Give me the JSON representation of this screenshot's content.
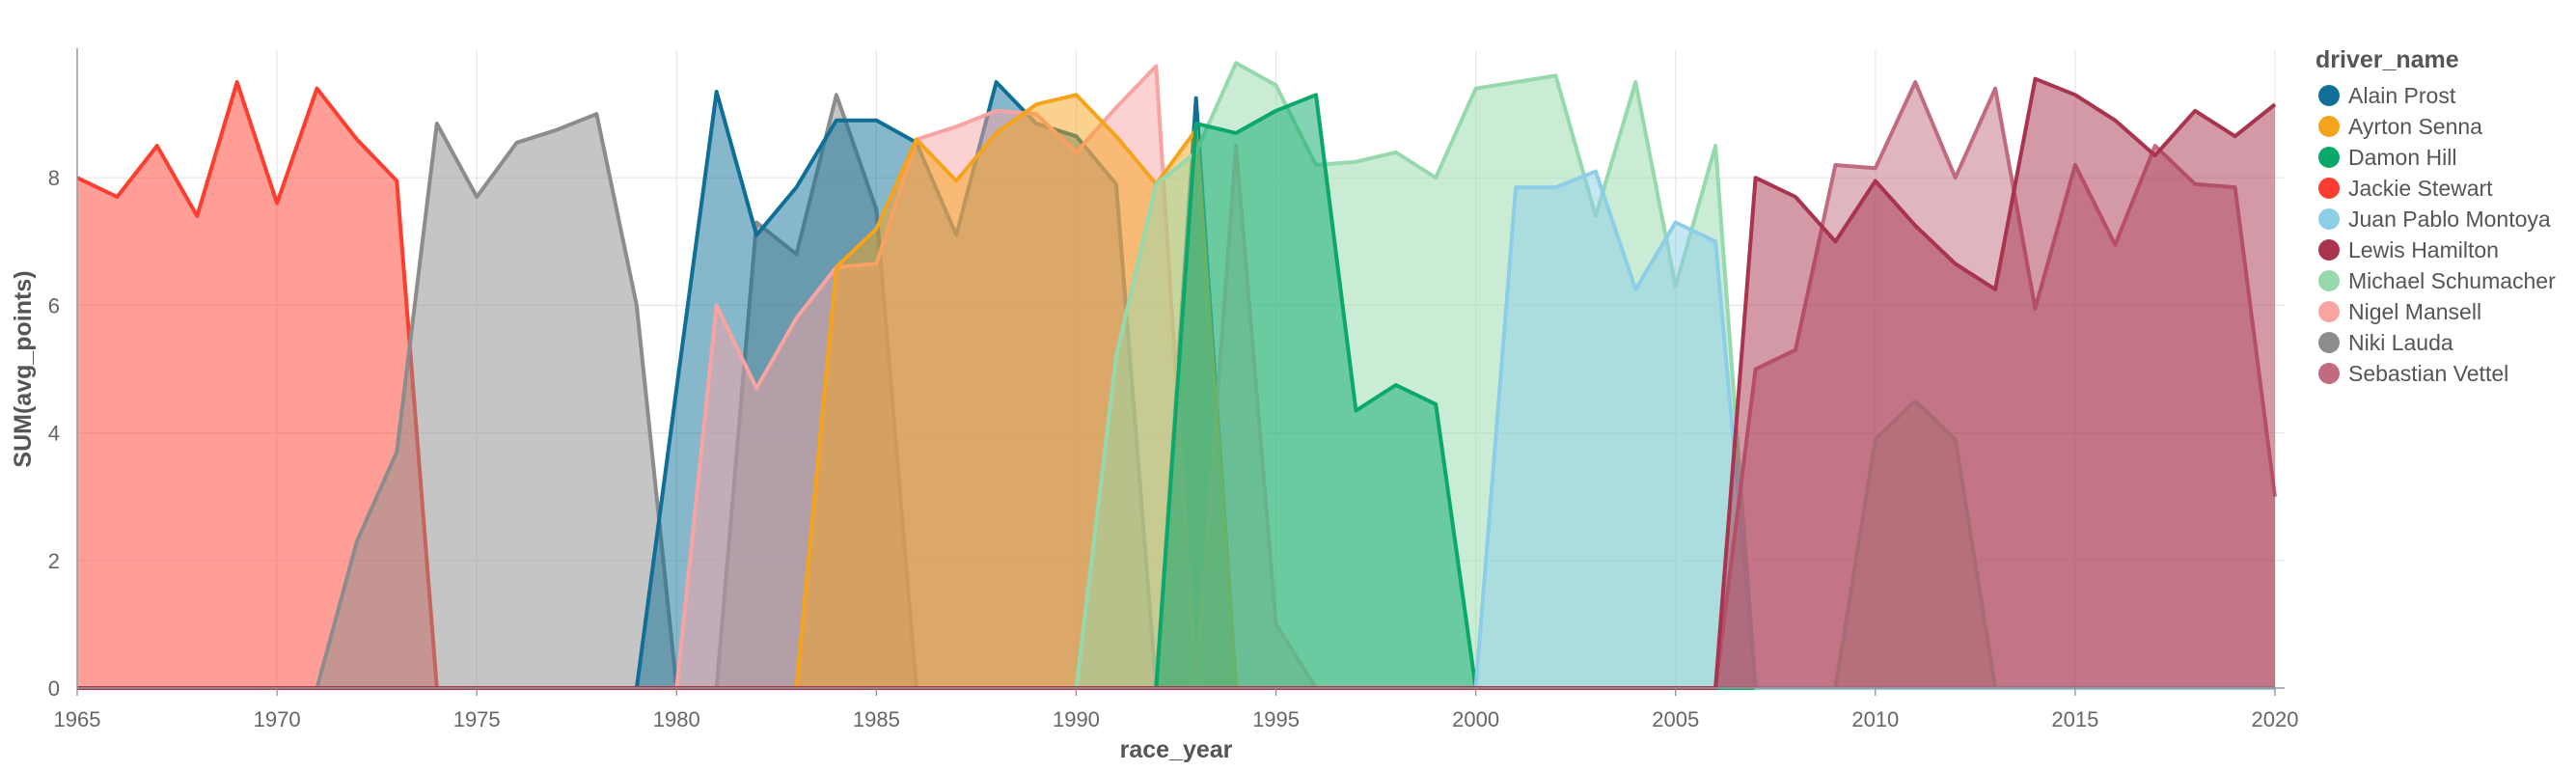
{
  "chart_data": {
    "type": "area",
    "xlabel": "race_year",
    "ylabel": "SUM(avg_points)",
    "xlim": [
      1965,
      2020
    ],
    "ylim": [
      0,
      10
    ],
    "x_ticks": [
      1965,
      1970,
      1975,
      1980,
      1985,
      1990,
      1995,
      2000,
      2005,
      2010,
      2015,
      2020
    ],
    "y_ticks": [
      0,
      2,
      4,
      6,
      8
    ],
    "grid": true,
    "stacked": false,
    "legend": {
      "title": "driver_name",
      "position": "right"
    },
    "series": [
      {
        "name": "Jackie Stewart",
        "color": "#ff3d2e",
        "points": [
          [
            1965,
            8.0
          ],
          [
            1966,
            7.7
          ],
          [
            1967,
            8.5
          ],
          [
            1968,
            7.4
          ],
          [
            1969,
            9.5
          ],
          [
            1970,
            7.6
          ],
          [
            1971,
            9.4
          ],
          [
            1972,
            8.6
          ],
          [
            1973,
            7.95
          ],
          [
            1974,
            0
          ]
        ]
      },
      {
        "name": "Niki Lauda",
        "color": "#8c8c8c",
        "points": [
          [
            1971,
            0
          ],
          [
            1972,
            2.3
          ],
          [
            1973,
            3.7
          ],
          [
            1974,
            8.85
          ],
          [
            1975,
            7.7
          ],
          [
            1976,
            8.55
          ],
          [
            1977,
            8.75
          ],
          [
            1978,
            9.0
          ],
          [
            1979,
            6.0
          ],
          [
            1980,
            0
          ],
          [
            1981,
            0
          ],
          [
            1982,
            7.3
          ],
          [
            1983,
            6.8
          ],
          [
            1984,
            9.3
          ],
          [
            1985,
            7.5
          ],
          [
            1986,
            0
          ]
        ]
      },
      {
        "name": "Alain Prost",
        "color": "#0f6f96",
        "points": [
          [
            1979,
            0
          ],
          [
            1980,
            4.7
          ],
          [
            1981,
            9.35
          ],
          [
            1982,
            7.1
          ],
          [
            1983,
            7.85
          ],
          [
            1984,
            8.9
          ],
          [
            1985,
            8.9
          ],
          [
            1986,
            8.55
          ],
          [
            1987,
            7.1
          ],
          [
            1988,
            9.5
          ],
          [
            1989,
            8.85
          ],
          [
            1990,
            8.65
          ],
          [
            1991,
            7.9
          ],
          [
            1992,
            0
          ],
          [
            1993,
            9.25
          ],
          [
            1994,
            0
          ]
        ]
      },
      {
        "name": "Nigel Mansell",
        "color": "#f9a3a3",
        "points": [
          [
            1980,
            0
          ],
          [
            1981,
            6.0
          ],
          [
            1982,
            4.7
          ],
          [
            1983,
            5.8
          ],
          [
            1984,
            6.6
          ],
          [
            1985,
            6.65
          ],
          [
            1986,
            8.6
          ],
          [
            1987,
            8.8
          ],
          [
            1988,
            9.05
          ],
          [
            1989,
            9.0
          ],
          [
            1990,
            8.4
          ],
          [
            1991,
            9.1
          ],
          [
            1992,
            9.75
          ],
          [
            1993,
            0
          ],
          [
            1994,
            8.5
          ],
          [
            1995,
            1.0
          ],
          [
            1996,
            0
          ]
        ]
      },
      {
        "name": "Ayrton Senna",
        "color": "#f6a31c",
        "points": [
          [
            1983,
            0
          ],
          [
            1984,
            6.6
          ],
          [
            1985,
            7.2
          ],
          [
            1986,
            8.6
          ],
          [
            1987,
            7.95
          ],
          [
            1988,
            8.7
          ],
          [
            1989,
            9.15
          ],
          [
            1990,
            9.3
          ],
          [
            1991,
            8.65
          ],
          [
            1992,
            7.9
          ],
          [
            1993,
            8.75
          ],
          [
            1994,
            0
          ]
        ]
      },
      {
        "name": "Michael Schumacher",
        "color": "#96d9ac",
        "points": [
          [
            1990,
            0
          ],
          [
            1991,
            5.2
          ],
          [
            1992,
            7.9
          ],
          [
            1993,
            8.4
          ],
          [
            1994,
            9.8
          ],
          [
            1995,
            9.45
          ],
          [
            1996,
            8.2
          ],
          [
            1997,
            8.25
          ],
          [
            1998,
            8.4
          ],
          [
            1999,
            8.0
          ],
          [
            2000,
            9.4
          ],
          [
            2001,
            9.5
          ],
          [
            2002,
            9.6
          ],
          [
            2003,
            7.4
          ],
          [
            2004,
            9.5
          ],
          [
            2005,
            6.3
          ],
          [
            2006,
            8.5
          ],
          [
            2007,
            0
          ],
          [
            2008,
            0
          ],
          [
            2009,
            0
          ],
          [
            2010,
            3.9
          ],
          [
            2011,
            4.5
          ],
          [
            2012,
            3.9
          ],
          [
            2013,
            0
          ]
        ]
      },
      {
        "name": "Damon Hill",
        "color": "#0aa86b",
        "points": [
          [
            1992,
            0
          ],
          [
            1993,
            8.85
          ],
          [
            1994,
            8.7
          ],
          [
            1995,
            9.05
          ],
          [
            1996,
            9.3
          ],
          [
            1997,
            4.35
          ],
          [
            1998,
            4.75
          ],
          [
            1999,
            4.45
          ],
          [
            2000,
            0
          ]
        ]
      },
      {
        "name": "Juan Pablo Montoya",
        "color": "#8ccde8",
        "points": [
          [
            2000,
            0
          ],
          [
            2001,
            7.85
          ],
          [
            2002,
            7.85
          ],
          [
            2003,
            8.1
          ],
          [
            2004,
            6.25
          ],
          [
            2005,
            7.3
          ],
          [
            2006,
            7.0
          ],
          [
            2007,
            0
          ]
        ]
      },
      {
        "name": "Sebastian Vettel",
        "color": "#c06b80",
        "points": [
          [
            2006,
            0
          ],
          [
            2007,
            5.0
          ],
          [
            2008,
            5.3
          ],
          [
            2009,
            8.2
          ],
          [
            2010,
            8.15
          ],
          [
            2011,
            9.5
          ],
          [
            2012,
            8.0
          ],
          [
            2013,
            9.4
          ],
          [
            2014,
            5.95
          ],
          [
            2015,
            8.2
          ],
          [
            2016,
            6.95
          ],
          [
            2017,
            8.5
          ],
          [
            2018,
            7.9
          ],
          [
            2019,
            7.85
          ],
          [
            2020,
            3.0
          ]
        ]
      },
      {
        "name": "Lewis Hamilton",
        "color": "#a8344e",
        "points": [
          [
            2006,
            0
          ],
          [
            2007,
            8.0
          ],
          [
            2008,
            7.7
          ],
          [
            2009,
            7.0
          ],
          [
            2010,
            7.95
          ],
          [
            2011,
            7.25
          ],
          [
            2012,
            6.65
          ],
          [
            2013,
            6.25
          ],
          [
            2014,
            9.55
          ],
          [
            2015,
            9.3
          ],
          [
            2016,
            8.9
          ],
          [
            2017,
            8.35
          ],
          [
            2018,
            9.05
          ],
          [
            2019,
            8.65
          ],
          [
            2020,
            9.15
          ]
        ]
      }
    ],
    "legend_order": [
      "Alain Prost",
      "Ayrton Senna",
      "Damon Hill",
      "Jackie Stewart",
      "Juan Pablo Montoya",
      "Lewis Hamilton",
      "Michael Schumacher",
      "Nigel Mansell",
      "Niki Lauda",
      "Sebastian Vettel"
    ]
  }
}
